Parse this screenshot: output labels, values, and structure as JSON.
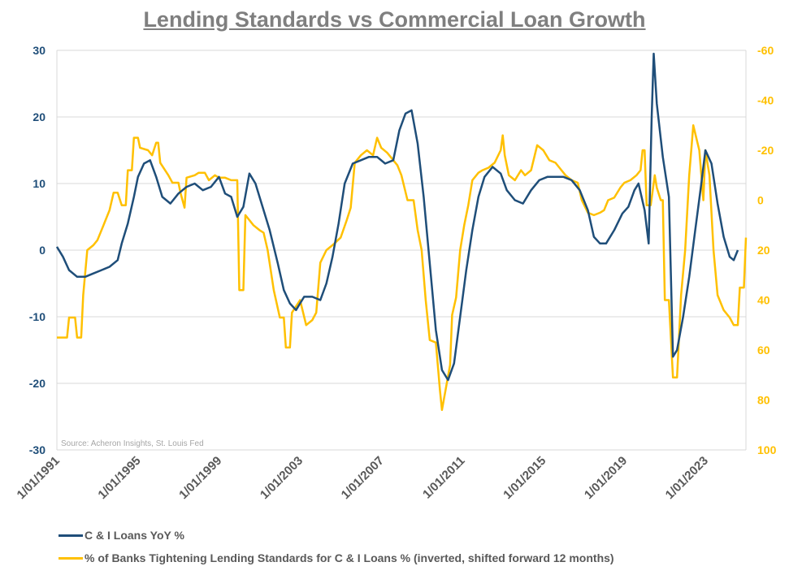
{
  "chart_data": {
    "type": "line",
    "title": "Lending Standards vs Commercial Loan Growth",
    "source": "Source: Acheron Insights, St. Louis Fed",
    "left_axis": {
      "range": [
        -30,
        30
      ],
      "ticks": [
        "30",
        "20",
        "10",
        "0",
        "-10",
        "-20",
        "-30"
      ]
    },
    "right_axis": {
      "range": [
        -60,
        100
      ],
      "inverted": true,
      "ticks": [
        "-60",
        "-40",
        "-20",
        "0",
        "20",
        "40",
        "60",
        "80",
        "100"
      ]
    },
    "x_range": [
      1991.0,
      2025.0
    ],
    "x_ticks": [
      "1/01/1991",
      "1/01/1995",
      "1/01/1999",
      "1/01/2003",
      "1/01/2007",
      "1/01/2011",
      "1/01/2015",
      "1/01/2019",
      "1/01/2023"
    ],
    "grid": "horizontal",
    "legend_position": "bottom",
    "series": [
      {
        "name": "C & I Loans YoY %",
        "color": "#1f4e79",
        "axis": "left",
        "points": [
          [
            1991.0,
            0.5
          ],
          [
            1991.3,
            -1
          ],
          [
            1991.6,
            -3
          ],
          [
            1992.0,
            -4
          ],
          [
            1992.4,
            -4
          ],
          [
            1992.8,
            -3.5
          ],
          [
            1993.2,
            -3
          ],
          [
            1993.6,
            -2.5
          ],
          [
            1994.0,
            -1.5
          ],
          [
            1994.2,
            1
          ],
          [
            1994.5,
            4
          ],
          [
            1994.8,
            8
          ],
          [
            1995.0,
            11
          ],
          [
            1995.3,
            13
          ],
          [
            1995.6,
            13.5
          ],
          [
            1995.9,
            11
          ],
          [
            1996.2,
            8
          ],
          [
            1996.6,
            7
          ],
          [
            1997.0,
            8.5
          ],
          [
            1997.4,
            9.5
          ],
          [
            1997.8,
            10
          ],
          [
            1998.2,
            9
          ],
          [
            1998.6,
            9.5
          ],
          [
            1999.0,
            11
          ],
          [
            1999.3,
            8.5
          ],
          [
            1999.6,
            8
          ],
          [
            1999.9,
            5
          ],
          [
            2000.2,
            6.5
          ],
          [
            2000.5,
            11.5
          ],
          [
            2000.8,
            10
          ],
          [
            2001.1,
            7
          ],
          [
            2001.5,
            3
          ],
          [
            2001.9,
            -2
          ],
          [
            2002.2,
            -6
          ],
          [
            2002.5,
            -8
          ],
          [
            2002.8,
            -9
          ],
          [
            2003.2,
            -7
          ],
          [
            2003.6,
            -7
          ],
          [
            2004.0,
            -7.5
          ],
          [
            2004.3,
            -5
          ],
          [
            2004.6,
            -1
          ],
          [
            2004.9,
            4
          ],
          [
            2005.2,
            10
          ],
          [
            2005.6,
            13
          ],
          [
            2006.0,
            13.5
          ],
          [
            2006.4,
            14
          ],
          [
            2006.8,
            14
          ],
          [
            2007.2,
            13
          ],
          [
            2007.6,
            13.5
          ],
          [
            2007.9,
            18
          ],
          [
            2008.2,
            20.5
          ],
          [
            2008.5,
            21
          ],
          [
            2008.8,
            16
          ],
          [
            2009.1,
            8
          ],
          [
            2009.4,
            -2
          ],
          [
            2009.7,
            -12
          ],
          [
            2010.0,
            -18
          ],
          [
            2010.3,
            -19.5
          ],
          [
            2010.6,
            -17
          ],
          [
            2010.9,
            -10
          ],
          [
            2011.2,
            -3
          ],
          [
            2011.5,
            3
          ],
          [
            2011.8,
            8
          ],
          [
            2012.1,
            11
          ],
          [
            2012.5,
            12.5
          ],
          [
            2012.9,
            11.5
          ],
          [
            2013.2,
            9
          ],
          [
            2013.6,
            7.5
          ],
          [
            2014.0,
            7
          ],
          [
            2014.4,
            9
          ],
          [
            2014.8,
            10.5
          ],
          [
            2015.2,
            11
          ],
          [
            2015.6,
            11
          ],
          [
            2016.0,
            11
          ],
          [
            2016.4,
            10.5
          ],
          [
            2016.8,
            9
          ],
          [
            2017.2,
            6
          ],
          [
            2017.5,
            2
          ],
          [
            2017.8,
            1
          ],
          [
            2018.1,
            1
          ],
          [
            2018.5,
            3
          ],
          [
            2018.9,
            5.5
          ],
          [
            2019.2,
            6.5
          ],
          [
            2019.5,
            9
          ],
          [
            2019.7,
            10
          ],
          [
            2020.0,
            6
          ],
          [
            2020.2,
            1
          ],
          [
            2020.35,
            20
          ],
          [
            2020.45,
            29.5
          ],
          [
            2020.6,
            22
          ],
          [
            2020.9,
            14
          ],
          [
            2021.2,
            8
          ],
          [
            2021.4,
            -16
          ],
          [
            2021.6,
            -15
          ],
          [
            2021.9,
            -10
          ],
          [
            2022.2,
            -4
          ],
          [
            2022.5,
            3
          ],
          [
            2022.8,
            10
          ],
          [
            2023.0,
            15
          ],
          [
            2023.3,
            13
          ],
          [
            2023.6,
            7
          ],
          [
            2023.9,
            2
          ],
          [
            2024.2,
            -1
          ],
          [
            2024.4,
            -1.5
          ],
          [
            2024.6,
            0
          ]
        ]
      },
      {
        "name": "% of Banks Tightening Lending Standards for C & I Loans % (inverted, shifted forward 12 months)",
        "color": "#ffc000",
        "axis": "right",
        "points": [
          [
            1991.0,
            55
          ],
          [
            1991.5,
            55
          ],
          [
            1991.6,
            47
          ],
          [
            1991.9,
            47
          ],
          [
            1992.0,
            55
          ],
          [
            1992.2,
            55
          ],
          [
            1992.3,
            38
          ],
          [
            1992.5,
            20
          ],
          [
            1992.8,
            18
          ],
          [
            1993.0,
            16
          ],
          [
            1993.3,
            10
          ],
          [
            1993.6,
            4
          ],
          [
            1993.8,
            -3
          ],
          [
            1994.0,
            -3
          ],
          [
            1994.2,
            2
          ],
          [
            1994.4,
            2
          ],
          [
            1994.5,
            -12
          ],
          [
            1994.7,
            -12
          ],
          [
            1994.8,
            -25
          ],
          [
            1995.0,
            -25
          ],
          [
            1995.1,
            -21
          ],
          [
            1995.5,
            -20
          ],
          [
            1995.7,
            -18
          ],
          [
            1995.9,
            -23
          ],
          [
            1996.0,
            -23
          ],
          [
            1996.1,
            -15
          ],
          [
            1996.5,
            -10
          ],
          [
            1996.7,
            -7
          ],
          [
            1997.0,
            -7
          ],
          [
            1997.1,
            -3
          ],
          [
            1997.3,
            3
          ],
          [
            1997.4,
            -9
          ],
          [
            1997.8,
            -10
          ],
          [
            1998.0,
            -11
          ],
          [
            1998.3,
            -11
          ],
          [
            1998.5,
            -8
          ],
          [
            1998.8,
            -10
          ],
          [
            1999.0,
            -9
          ],
          [
            1999.3,
            -9
          ],
          [
            1999.6,
            -8
          ],
          [
            1999.9,
            -8
          ],
          [
            2000.0,
            36
          ],
          [
            2000.2,
            36
          ],
          [
            2000.3,
            6
          ],
          [
            2000.7,
            10
          ],
          [
            2001.0,
            12
          ],
          [
            2001.2,
            13
          ],
          [
            2001.4,
            20
          ],
          [
            2001.7,
            36
          ],
          [
            2002.0,
            47
          ],
          [
            2002.2,
            47
          ],
          [
            2002.3,
            59
          ],
          [
            2002.5,
            59
          ],
          [
            2002.6,
            45
          ],
          [
            2003.0,
            40
          ],
          [
            2003.3,
            50
          ],
          [
            2003.6,
            48
          ],
          [
            2003.8,
            45
          ],
          [
            2004.0,
            25
          ],
          [
            2004.3,
            20
          ],
          [
            2004.6,
            18
          ],
          [
            2005.0,
            15
          ],
          [
            2005.3,
            8
          ],
          [
            2005.5,
            3
          ],
          [
            2005.7,
            -15
          ],
          [
            2006.0,
            -18
          ],
          [
            2006.3,
            -20
          ],
          [
            2006.6,
            -18
          ],
          [
            2006.8,
            -25
          ],
          [
            2007.0,
            -21
          ],
          [
            2007.3,
            -19
          ],
          [
            2007.5,
            -17
          ],
          [
            2007.8,
            -14
          ],
          [
            2008.0,
            -10
          ],
          [
            2008.3,
            0
          ],
          [
            2008.6,
            0
          ],
          [
            2008.8,
            12
          ],
          [
            2009.0,
            20
          ],
          [
            2009.2,
            40
          ],
          [
            2009.4,
            56
          ],
          [
            2009.7,
            57
          ],
          [
            2009.9,
            76
          ],
          [
            2010.0,
            84
          ],
          [
            2010.2,
            75
          ],
          [
            2010.4,
            66
          ],
          [
            2010.5,
            46
          ],
          [
            2010.7,
            39
          ],
          [
            2010.9,
            20
          ],
          [
            2011.1,
            10
          ],
          [
            2011.3,
            2
          ],
          [
            2011.5,
            -8
          ],
          [
            2011.8,
            -11
          ],
          [
            2012.0,
            -12
          ],
          [
            2012.3,
            -13
          ],
          [
            2012.6,
            -15
          ],
          [
            2012.9,
            -20
          ],
          [
            2013.0,
            -26
          ],
          [
            2013.1,
            -18
          ],
          [
            2013.3,
            -10
          ],
          [
            2013.6,
            -8
          ],
          [
            2013.9,
            -12
          ],
          [
            2014.1,
            -10
          ],
          [
            2014.4,
            -12
          ],
          [
            2014.7,
            -22
          ],
          [
            2015.0,
            -20
          ],
          [
            2015.3,
            -16
          ],
          [
            2015.6,
            -15
          ],
          [
            2015.9,
            -12
          ],
          [
            2016.1,
            -10
          ],
          [
            2016.4,
            -8
          ],
          [
            2016.7,
            -7
          ],
          [
            2016.9,
            0
          ],
          [
            2017.2,
            5
          ],
          [
            2017.5,
            6
          ],
          [
            2017.8,
            5
          ],
          [
            2018.0,
            4
          ],
          [
            2018.2,
            0
          ],
          [
            2018.5,
            -1
          ],
          [
            2018.8,
            -5
          ],
          [
            2019.0,
            -7
          ],
          [
            2019.3,
            -8
          ],
          [
            2019.6,
            -10
          ],
          [
            2019.8,
            -12
          ],
          [
            2019.9,
            -20
          ],
          [
            2020.0,
            -20
          ],
          [
            2020.1,
            2
          ],
          [
            2020.3,
            2
          ],
          [
            2020.5,
            -10
          ],
          [
            2020.6,
            -5
          ],
          [
            2020.8,
            0
          ],
          [
            2020.9,
            0
          ],
          [
            2021.0,
            40
          ],
          [
            2021.2,
            40
          ],
          [
            2021.4,
            71
          ],
          [
            2021.6,
            71
          ],
          [
            2021.8,
            38
          ],
          [
            2022.0,
            20
          ],
          [
            2022.2,
            -10
          ],
          [
            2022.4,
            -30
          ],
          [
            2022.7,
            -20
          ],
          [
            2022.9,
            0
          ],
          [
            2023.0,
            -20
          ],
          [
            2023.2,
            -10
          ],
          [
            2023.4,
            20
          ],
          [
            2023.6,
            38
          ],
          [
            2023.9,
            44
          ],
          [
            2024.2,
            47
          ],
          [
            2024.4,
            50
          ],
          [
            2024.6,
            50
          ],
          [
            2024.7,
            35
          ],
          [
            2024.9,
            35
          ],
          [
            2025.0,
            15
          ]
        ]
      }
    ]
  }
}
